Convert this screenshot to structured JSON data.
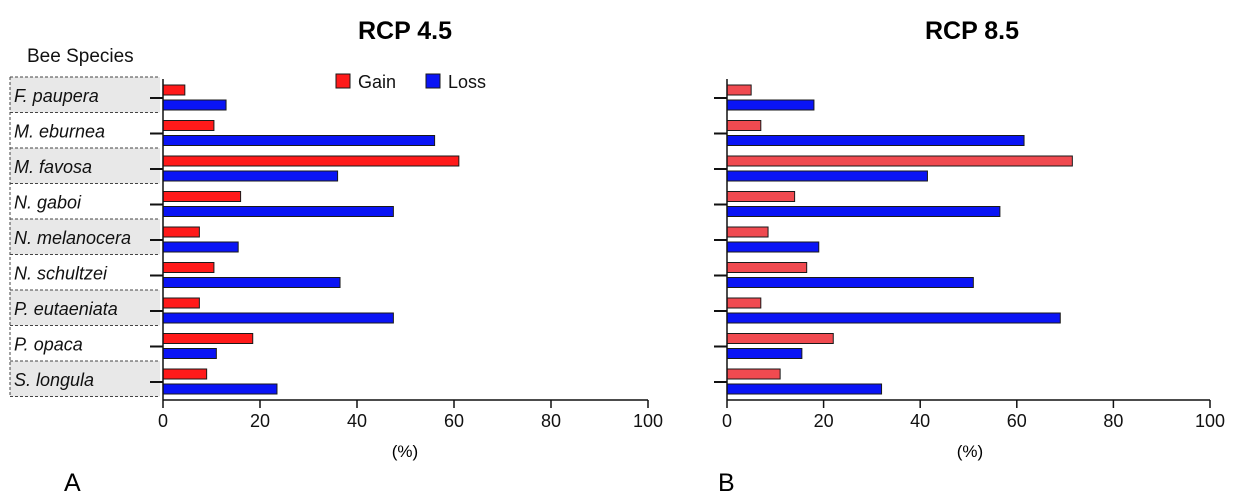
{
  "figure": {
    "species_header": "Bee Species",
    "species": [
      "F. paupera",
      "M. eburnea",
      "M. favosa",
      "N. gaboi",
      "N. melanocera",
      "N. schultzei",
      "P. eutaeniata",
      "P. opaca",
      "S. longula"
    ]
  },
  "chart_data": [
    {
      "type": "bar",
      "orientation": "horizontal",
      "panel_letter": "A",
      "title": "RCP 4.5",
      "xlabel": "(%)",
      "ylabel": "Bee Species",
      "xlim": [
        0,
        100
      ],
      "xticks": [
        0,
        20,
        40,
        60,
        80,
        100
      ],
      "categories": [
        "F. paupera",
        "M. eburnea",
        "M. favosa",
        "N. gaboi",
        "N. melanocera",
        "N. schultzei",
        "P. eutaeniata",
        "P. opaca",
        "S. longula"
      ],
      "series": [
        {
          "name": "Gain",
          "color": "#ff1a1a",
          "values": [
            4.5,
            10.5,
            61,
            16,
            7.5,
            10.5,
            7.5,
            18.5,
            9
          ]
        },
        {
          "name": "Loss",
          "color": "#0a14f5",
          "values": [
            13,
            56,
            36,
            47.5,
            15.5,
            36.5,
            47.5,
            11,
            23.5
          ]
        }
      ],
      "legend": "top-center",
      "grid": false
    },
    {
      "type": "bar",
      "orientation": "horizontal",
      "panel_letter": "B",
      "title": "RCP 8.5",
      "xlabel": "(%)",
      "xlim": [
        0,
        100
      ],
      "xticks": [
        0,
        20,
        40,
        60,
        80,
        100
      ],
      "categories": [
        "F. paupera",
        "M. eburnea",
        "M. favosa",
        "N. gaboi",
        "N. melanocera",
        "N. schultzei",
        "P. eutaeniata",
        "P. opaca",
        "S. longula"
      ],
      "series": [
        {
          "name": "Gain",
          "color": "#f04a50",
          "values": [
            5,
            7,
            71.5,
            14,
            8.5,
            16.5,
            7,
            22,
            11
          ]
        },
        {
          "name": "Loss",
          "color": "#0a14f5",
          "values": [
            18,
            61.5,
            41.5,
            56.5,
            19,
            51,
            69,
            15.5,
            32
          ]
        }
      ],
      "legend": "none",
      "grid": false
    }
  ]
}
